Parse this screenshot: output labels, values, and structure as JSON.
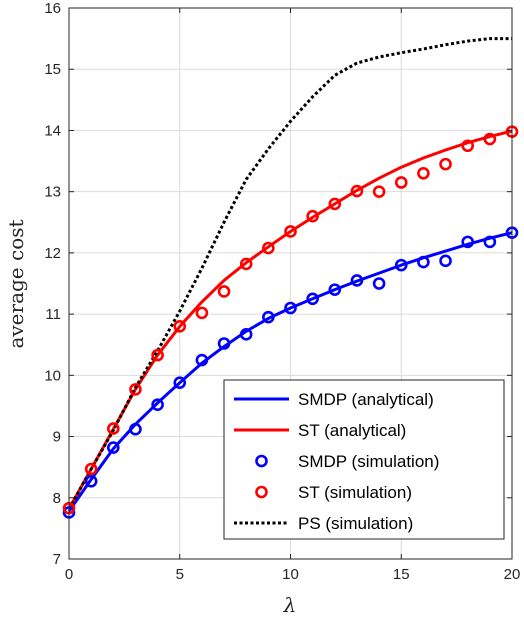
{
  "chart_data": {
    "type": "line",
    "title": "",
    "xlabel": "λ",
    "ylabel": "average cost",
    "xlim": [
      0,
      20
    ],
    "ylim": [
      7,
      16
    ],
    "xticks": [
      0,
      5,
      10,
      15,
      20
    ],
    "yticks": [
      7,
      8,
      9,
      10,
      11,
      12,
      13,
      14,
      15,
      16
    ],
    "grid": true,
    "legend_position": "bottom-right",
    "series": [
      {
        "name": "SMDP (analytical)",
        "style": "line",
        "color": "#0000ff",
        "x": [
          0,
          1,
          2,
          3,
          4,
          5,
          6,
          7,
          8,
          9,
          10,
          11,
          12,
          13,
          14,
          15,
          16,
          17,
          18,
          19,
          20
        ],
        "y": [
          7.78,
          8.3,
          8.8,
          9.2,
          9.55,
          9.88,
          10.2,
          10.47,
          10.72,
          10.93,
          11.1,
          11.25,
          11.4,
          11.54,
          11.67,
          11.8,
          11.92,
          12.03,
          12.14,
          12.24,
          12.33
        ]
      },
      {
        "name": "ST (analytical)",
        "style": "line",
        "color": "#ff0000",
        "x": [
          0,
          1,
          2,
          3,
          4,
          5,
          6,
          7,
          8,
          9,
          10,
          11,
          12,
          13,
          14,
          15,
          16,
          17,
          18,
          19,
          20
        ],
        "y": [
          7.82,
          8.47,
          9.12,
          9.77,
          10.33,
          10.8,
          11.2,
          11.55,
          11.84,
          12.1,
          12.35,
          12.58,
          12.8,
          13.02,
          13.22,
          13.4,
          13.55,
          13.68,
          13.8,
          13.9,
          13.99
        ]
      },
      {
        "name": "SMDP (simulation)",
        "style": "markers",
        "color": "#0000ff",
        "x": [
          0,
          1,
          2,
          3,
          4,
          5,
          6,
          7,
          8,
          9,
          10,
          11,
          12,
          13,
          14,
          15,
          16,
          17,
          18,
          19,
          20
        ],
        "y": [
          7.76,
          8.27,
          8.82,
          9.12,
          9.52,
          9.88,
          10.25,
          10.52,
          10.67,
          10.95,
          11.1,
          11.25,
          11.4,
          11.55,
          11.5,
          11.8,
          11.85,
          11.87,
          12.18,
          12.18,
          12.33
        ]
      },
      {
        "name": "ST (simulation)",
        "style": "markers",
        "color": "#ff0000",
        "x": [
          0,
          1,
          2,
          3,
          4,
          5,
          6,
          7,
          8,
          9,
          10,
          11,
          12,
          13,
          14,
          15,
          16,
          17,
          18,
          19,
          20
        ],
        "y": [
          7.83,
          8.47,
          9.13,
          9.77,
          10.33,
          10.8,
          11.02,
          11.37,
          11.82,
          12.08,
          12.35,
          12.6,
          12.8,
          13.01,
          13.0,
          13.15,
          13.3,
          13.45,
          13.75,
          13.86,
          13.98
        ]
      },
      {
        "name": "PS (simulation)",
        "style": "dotted",
        "color": "#000000",
        "x": [
          0,
          1,
          2,
          3,
          4,
          5,
          6,
          7,
          8,
          9,
          10,
          11,
          12,
          13,
          14,
          15,
          16,
          17,
          18,
          19,
          20
        ],
        "y": [
          7.82,
          8.47,
          9.1,
          9.8,
          10.4,
          11.05,
          11.75,
          12.5,
          13.2,
          13.7,
          14.15,
          14.55,
          14.9,
          15.1,
          15.2,
          15.27,
          15.33,
          15.4,
          15.46,
          15.5,
          15.5
        ]
      }
    ]
  }
}
